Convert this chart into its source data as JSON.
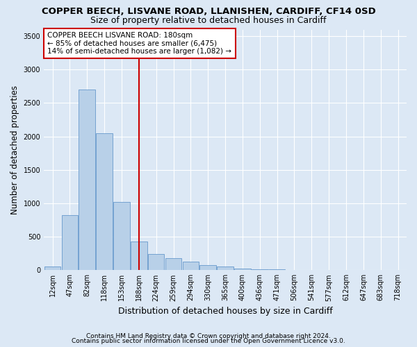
{
  "title": "COPPER BEECH, LISVANE ROAD, LLANISHEN, CARDIFF, CF14 0SD",
  "subtitle": "Size of property relative to detached houses in Cardiff",
  "xlabel": "Distribution of detached houses by size in Cardiff",
  "ylabel": "Number of detached properties",
  "footnote1": "Contains HM Land Registry data © Crown copyright and database right 2024.",
  "footnote2": "Contains public sector information licensed under the Open Government Licence v3.0.",
  "bar_labels": [
    "12sqm",
    "47sqm",
    "82sqm",
    "118sqm",
    "153sqm",
    "188sqm",
    "224sqm",
    "259sqm",
    "294sqm",
    "330sqm",
    "365sqm",
    "400sqm",
    "436sqm",
    "471sqm",
    "506sqm",
    "541sqm",
    "577sqm",
    "612sqm",
    "647sqm",
    "683sqm",
    "718sqm"
  ],
  "bar_values": [
    50,
    820,
    2700,
    2050,
    1020,
    430,
    240,
    175,
    130,
    75,
    50,
    25,
    18,
    12,
    8,
    5,
    3,
    2,
    1,
    1,
    0
  ],
  "bar_color": "#b8d0e8",
  "bar_edge_color": "#6699cc",
  "vline_x_index": 5,
  "vline_color": "#cc0000",
  "annotation_box_text": "COPPER BEECH LISVANE ROAD: 180sqm\n← 85% of detached houses are smaller (6,475)\n14% of semi-detached houses are larger (1,082) →",
  "annotation_box_color": "#cc0000",
  "ylim": [
    0,
    3600
  ],
  "yticks": [
    0,
    500,
    1000,
    1500,
    2000,
    2500,
    3000,
    3500
  ],
  "bg_color": "#dce8f5",
  "plot_bg_color": "#dce8f5",
  "grid_color": "#ffffff",
  "title_fontsize": 9.5,
  "subtitle_fontsize": 9,
  "axis_label_fontsize": 8.5,
  "tick_fontsize": 7,
  "footnote_fontsize": 6.5
}
